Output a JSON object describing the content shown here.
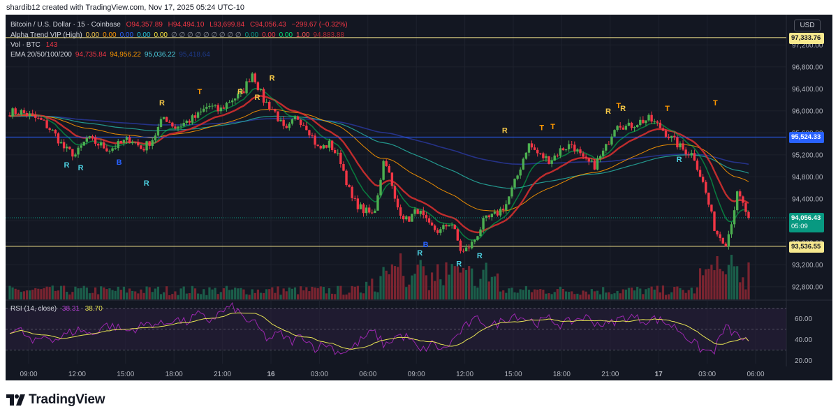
{
  "header": {
    "credit": "shardib12 created with TradingView.com, Nov 17, 2025 05:24 UTC-10",
    "symbol": "Bitcoin / U.S. Dollar · 15 · Coinbase",
    "open": "O94,357.89",
    "high": "H94,494.10",
    "low": "L93,699.84",
    "close": "C94,056.43",
    "change": "−299.67 (−0.32%)"
  },
  "legend": {
    "alpha_name": "Alpha Trend VIP (High)",
    "alpha_values": [
      {
        "text": "0.00",
        "color": "#f7c948"
      },
      {
        "text": "0.00",
        "color": "#ff9800"
      },
      {
        "text": "0.00",
        "color": "#2962ff"
      },
      {
        "text": "0.00",
        "color": "#26c6da"
      },
      {
        "text": "0.00",
        "color": "#ffeb3b"
      },
      {
        "text": "∅ ∅ ∅ ∅ ∅ ∅ ∅ ∅ ∅",
        "color": "#9598a1"
      },
      {
        "text": "0.00",
        "color": "#089981"
      },
      {
        "text": "0.00",
        "color": "#f23645"
      },
      {
        "text": "0.00",
        "color": "#00e676"
      },
      {
        "text": "1.00",
        "color": "#ff5252"
      },
      {
        "text": "94,883.88",
        "color": "#b22833"
      }
    ],
    "vol_name": "Vol · BTC",
    "vol_value": "143",
    "ema_name": "EMA 20/50/100/200",
    "ema_values": [
      {
        "text": "94,735.84",
        "color": "#f23645"
      },
      {
        "text": "94,956.22",
        "color": "#ff9800"
      },
      {
        "text": "95,036.22",
        "color": "#4dd0e1"
      },
      {
        "text": "95,418.64",
        "color": "#1e3a8a"
      }
    ],
    "rsi_name": "RSI (14, close)",
    "rsi_value1": "38.31",
    "rsi_value2": "38.70"
  },
  "price_axis": {
    "currency": "USD",
    "labels": [
      {
        "text": "97,333.76",
        "value": 97333.76,
        "bg": "#f7e98e",
        "fg": "#131722"
      },
      {
        "text": "95,524.33",
        "value": 95524.33,
        "bg": "#2962ff",
        "fg": "#ffffff"
      },
      {
        "text": "94,056.43",
        "value": 94056.43,
        "bg": "#089981",
        "fg": "#ffffff",
        "sub": "05:09"
      },
      {
        "text": "93,536.55",
        "value": 93536.55,
        "bg": "#f7e98e",
        "fg": "#131722"
      }
    ]
  },
  "chart_data": {
    "type": "candlestick",
    "symbol": "BTCUSD",
    "interval": "15",
    "price_ticks": [
      97200,
      96800,
      96400,
      96000,
      95600,
      95200,
      94800,
      94400,
      94000,
      93600,
      93200,
      92800
    ],
    "price_range": [
      92570,
      97650
    ],
    "time_ticks": [
      "09:00",
      "12:00",
      "15:00",
      "18:00",
      "21:00",
      "16",
      "03:00",
      "06:00",
      "09:00",
      "12:00",
      "15:00",
      "18:00",
      "21:00",
      "17",
      "03:00",
      "06:00"
    ],
    "horizontal_lines": [
      {
        "value": 97333.76,
        "color": "#f7e98e"
      },
      {
        "value": 95524.33,
        "color": "#2962ff"
      },
      {
        "value": 93536.55,
        "color": "#f7e98e"
      }
    ],
    "close_anchors": [
      95980,
      95980,
      95900,
      95800,
      95600,
      95300,
      95200,
      95500,
      95400,
      95300,
      95400,
      95500,
      95300,
      95500,
      95900,
      95700,
      95800,
      95900,
      96100,
      96000,
      96200,
      96300,
      96700,
      96200,
      96000,
      95600,
      95900,
      95700,
      95300,
      95400,
      95100,
      94400,
      94200,
      94100,
      95200,
      94300,
      94000,
      94200,
      93900,
      93800,
      94000,
      93400,
      93600,
      94000,
      94100,
      94300,
      94800,
      95400,
      95200,
      95100,
      95300,
      95400,
      95100,
      95000,
      95300,
      95800,
      95700,
      95800,
      95850,
      95700,
      95500,
      95300,
      95200,
      94600,
      93800,
      93600,
      94500,
      94056.43
    ],
    "volume_pattern": "low baseline with spikes near 06:00–12:00 on day 16 and near 03:00 on day 17",
    "rsi": {
      "ticks": [
        60,
        40,
        20
      ],
      "range": [
        17,
        77
      ],
      "overbought": 70,
      "oversold": 30,
      "last": 38.31,
      "smoothed_last": 38.7,
      "anchors": [
        50,
        48,
        36,
        44,
        40,
        46,
        50,
        44,
        54,
        52,
        48,
        52,
        56,
        54,
        60,
        56,
        64,
        58,
        66,
        72,
        60,
        54,
        40,
        46,
        38,
        44,
        32,
        36,
        28,
        30,
        40,
        48,
        34,
        44,
        42,
        28,
        36,
        30,
        42,
        54,
        60,
        52,
        58,
        64,
        60,
        56,
        60,
        54,
        58,
        62,
        56,
        54,
        60,
        62,
        58,
        60,
        56,
        50,
        40,
        30,
        28,
        52,
        44,
        38.31
      ]
    },
    "markers": [
      {
        "text": "R",
        "color": "#4dd0e1",
        "pos": "below",
        "time_frac": 0.077,
        "price": 95150
      },
      {
        "text": "R",
        "color": "#4dd0e1",
        "pos": "below",
        "time_frac": 0.096,
        "price": 95100
      },
      {
        "text": "B",
        "color": "#2962ff",
        "pos": "below",
        "time_frac": 0.148,
        "price": 95200
      },
      {
        "text": "R",
        "color": "#4dd0e1",
        "pos": "below",
        "time_frac": 0.185,
        "price": 94820
      },
      {
        "text": "R",
        "color": "#f7c948",
        "pos": "above",
        "time_frac": 0.206,
        "price": 96050
      },
      {
        "text": "T",
        "color": "#ff9800",
        "pos": "above",
        "time_frac": 0.257,
        "price": 96250
      },
      {
        "text": "R",
        "color": "#f7c948",
        "pos": "above",
        "time_frac": 0.312,
        "price": 96250
      },
      {
        "text": "R",
        "color": "#f7c948",
        "pos": "above",
        "time_frac": 0.335,
        "price": 96150
      },
      {
        "text": "R",
        "color": "#f7c948",
        "pos": "above",
        "time_frac": 0.355,
        "price": 96500
      },
      {
        "text": "R",
        "color": "#4dd0e1",
        "pos": "below",
        "time_frac": 0.555,
        "price": 93550
      },
      {
        "text": "B",
        "color": "#2962ff",
        "pos": "below",
        "time_frac": 0.563,
        "price": 93700
      },
      {
        "text": "R",
        "color": "#4dd0e1",
        "pos": "below",
        "time_frac": 0.608,
        "price": 93350
      },
      {
        "text": "R",
        "color": "#4dd0e1",
        "pos": "below",
        "time_frac": 0.636,
        "price": 93500
      },
      {
        "text": "R",
        "color": "#f7c948",
        "pos": "above",
        "time_frac": 0.67,
        "price": 95550
      },
      {
        "text": "T",
        "color": "#ff9800",
        "pos": "above",
        "time_frac": 0.72,
        "price": 95600
      },
      {
        "text": "T",
        "color": "#ff9800",
        "pos": "above",
        "time_frac": 0.735,
        "price": 95620
      },
      {
        "text": "R",
        "color": "#f7c948",
        "pos": "above",
        "time_frac": 0.81,
        "price": 95900
      },
      {
        "text": "T",
        "color": "#ff9800",
        "pos": "above",
        "time_frac": 0.824,
        "price": 96000
      },
      {
        "text": "R",
        "color": "#f7c948",
        "pos": "above",
        "time_frac": 0.83,
        "price": 95950
      },
      {
        "text": "T",
        "color": "#ff9800",
        "pos": "above",
        "time_frac": 0.89,
        "price": 95950
      },
      {
        "text": "R",
        "color": "#4dd0e1",
        "pos": "below",
        "time_frac": 0.906,
        "price": 95250
      },
      {
        "text": "T",
        "color": "#ff9800",
        "pos": "above",
        "time_frac": 0.955,
        "price": 96050
      }
    ],
    "colors": {
      "up": "#4caf50",
      "down": "#f23645",
      "volume_up": "#1b5e4a",
      "volume_down": "#7a2430",
      "ema20": "#d32f2f",
      "ema50": "#ff9800",
      "ema100": "#26a69a",
      "ema200": "#283593",
      "trend_green": "#00c853",
      "trend_orange": "#ff9800",
      "rsi": "#9c27b0",
      "rsi_ma": "#e6e254"
    }
  },
  "branding": {
    "logo_text": "TradingView"
  }
}
